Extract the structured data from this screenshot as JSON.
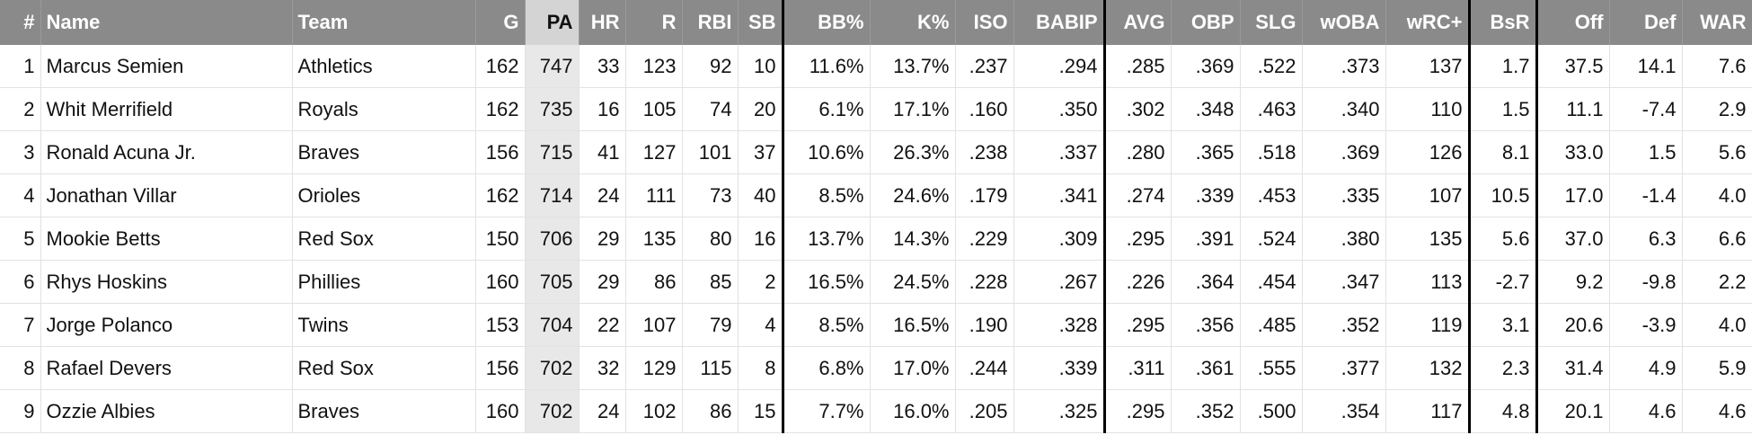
{
  "table": {
    "headers": [
      "#",
      "Name",
      "Team",
      "G",
      "PA",
      "HR",
      "R",
      "RBI",
      "SB",
      "BB%",
      "K%",
      "ISO",
      "BABIP",
      "AVG",
      "OBP",
      "SLG",
      "wOBA",
      "wRC+",
      "BsR",
      "Off",
      "Def",
      "WAR"
    ],
    "rows": [
      [
        "1",
        "Marcus Semien",
        "Athletics",
        "162",
        "747",
        "33",
        "123",
        "92",
        "10",
        "11.6%",
        "13.7%",
        ".237",
        ".294",
        ".285",
        ".369",
        ".522",
        ".373",
        "137",
        "1.7",
        "37.5",
        "14.1",
        "7.6"
      ],
      [
        "2",
        "Whit Merrifield",
        "Royals",
        "162",
        "735",
        "16",
        "105",
        "74",
        "20",
        "6.1%",
        "17.1%",
        ".160",
        ".350",
        ".302",
        ".348",
        ".463",
        ".340",
        "110",
        "1.5",
        "11.1",
        "-7.4",
        "2.9"
      ],
      [
        "3",
        "Ronald Acuna Jr.",
        "Braves",
        "156",
        "715",
        "41",
        "127",
        "101",
        "37",
        "10.6%",
        "26.3%",
        ".238",
        ".337",
        ".280",
        ".365",
        ".518",
        ".369",
        "126",
        "8.1",
        "33.0",
        "1.5",
        "5.6"
      ],
      [
        "4",
        "Jonathan Villar",
        "Orioles",
        "162",
        "714",
        "24",
        "111",
        "73",
        "40",
        "8.5%",
        "24.6%",
        ".179",
        ".341",
        ".274",
        ".339",
        ".453",
        ".335",
        "107",
        "10.5",
        "17.0",
        "-1.4",
        "4.0"
      ],
      [
        "5",
        "Mookie Betts",
        "Red Sox",
        "150",
        "706",
        "29",
        "135",
        "80",
        "16",
        "13.7%",
        "14.3%",
        ".229",
        ".309",
        ".295",
        ".391",
        ".524",
        ".380",
        "135",
        "5.6",
        "37.0",
        "6.3",
        "6.6"
      ],
      [
        "6",
        "Rhys Hoskins",
        "Phillies",
        "160",
        "705",
        "29",
        "86",
        "85",
        "2",
        "16.5%",
        "24.5%",
        ".228",
        ".267",
        ".226",
        ".364",
        ".454",
        ".347",
        "113",
        "-2.7",
        "9.2",
        "-9.8",
        "2.2"
      ],
      [
        "7",
        "Jorge Polanco",
        "Twins",
        "153",
        "704",
        "22",
        "107",
        "79",
        "4",
        "8.5%",
        "16.5%",
        ".190",
        ".328",
        ".295",
        ".356",
        ".485",
        ".352",
        "119",
        "3.1",
        "20.6",
        "-3.9",
        "4.0"
      ],
      [
        "8",
        "Rafael Devers",
        "Red Sox",
        "156",
        "702",
        "32",
        "129",
        "115",
        "8",
        "6.8%",
        "17.0%",
        ".244",
        ".339",
        ".311",
        ".361",
        ".555",
        ".377",
        "132",
        "2.3",
        "31.4",
        "4.9",
        "5.9"
      ],
      [
        "9",
        "Ozzie Albies",
        "Braves",
        "160",
        "702",
        "24",
        "102",
        "86",
        "15",
        "7.7%",
        "16.0%",
        ".205",
        ".325",
        ".295",
        ".352",
        ".500",
        ".354",
        "117",
        "4.8",
        "20.1",
        "4.6",
        "4.6"
      ]
    ]
  }
}
